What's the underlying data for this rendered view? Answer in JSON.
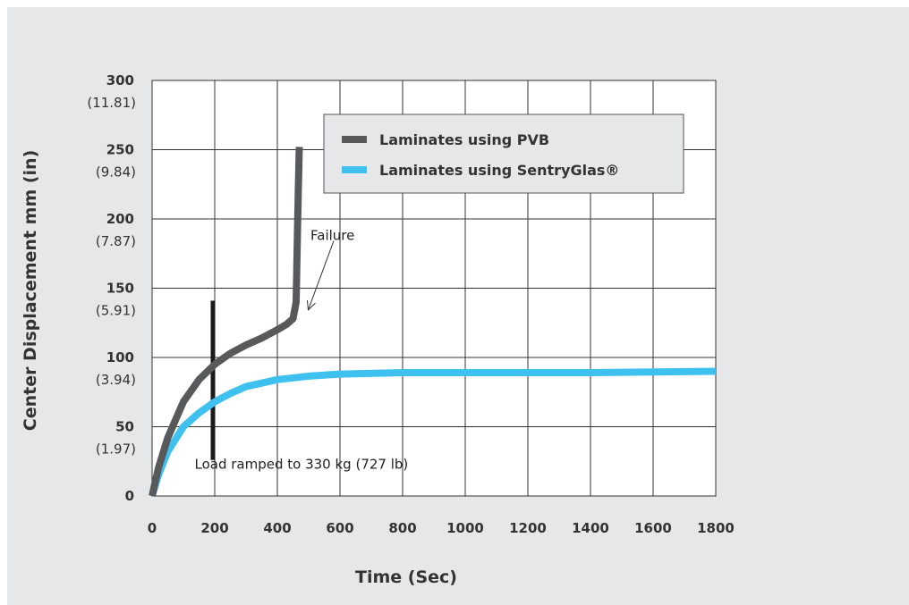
{
  "colors": {
    "panel_bg": "#e6e7e8",
    "pvb": "#58595b",
    "sentryglas": "#3ec1ee",
    "marker": "#1a1a1a"
  },
  "chart_data": {
    "type": "line",
    "xlabel": "Time (Sec)",
    "ylabel": "Center Displacement mm (in)",
    "xlim": [
      0,
      1800
    ],
    "ylim": [
      0,
      300
    ],
    "grid": true,
    "legend_placement": "top-right",
    "x_ticks": [
      {
        "value": 0,
        "label": "0"
      },
      {
        "value": 200,
        "label": "200"
      },
      {
        "value": 400,
        "label": "400"
      },
      {
        "value": 600,
        "label": "600"
      },
      {
        "value": 800,
        "label": "800"
      },
      {
        "value": 1000,
        "label": "1000"
      },
      {
        "value": 1200,
        "label": "1200"
      },
      {
        "value": 1400,
        "label": "1400"
      },
      {
        "value": 1600,
        "label": "1600"
      },
      {
        "value": 1800,
        "label": "1800"
      }
    ],
    "y_ticks": [
      {
        "value": 0,
        "label": "0",
        "sublabel": ""
      },
      {
        "value": 50,
        "label": "50",
        "sublabel": "(1.97)"
      },
      {
        "value": 100,
        "label": "100",
        "sublabel": "(3.94)"
      },
      {
        "value": 150,
        "label": "150",
        "sublabel": "(5.91)"
      },
      {
        "value": 200,
        "label": "200",
        "sublabel": "(7.87)"
      },
      {
        "value": 250,
        "label": "250",
        "sublabel": "(9.84)"
      },
      {
        "value": 300,
        "label": "300",
        "sublabel": "(11.81)"
      }
    ],
    "series": [
      {
        "name": "Laminates using PVB",
        "color": "#58595b",
        "x": [
          0,
          20,
          50,
          100,
          150,
          200,
          250,
          300,
          350,
          400,
          430,
          450,
          460,
          465,
          470
        ],
        "y": [
          0,
          20,
          42,
          68,
          84,
          95,
          103,
          109,
          114,
          120,
          124,
          128,
          140,
          200,
          252
        ]
      },
      {
        "name": "Laminates using SentryGlas®",
        "color": "#3ec1ee",
        "x": [
          0,
          20,
          50,
          100,
          150,
          200,
          250,
          300,
          400,
          500,
          600,
          800,
          1000,
          1200,
          1400,
          1600,
          1800
        ],
        "y": [
          0,
          15,
          32,
          50,
          60,
          68,
          74,
          79,
          84,
          86.5,
          88,
          89,
          89,
          89,
          89,
          89.5,
          90
        ]
      }
    ],
    "annotations": [
      {
        "text": "Failure",
        "x": 620,
        "y": 188,
        "arrow_to": [
          470,
          133
        ]
      },
      {
        "text": "Load ramped to 330 kg (727 lb)",
        "x": 250,
        "y": 23
      }
    ],
    "load_marker": {
      "x": 200,
      "y_from": 26,
      "y_to": 141
    }
  }
}
